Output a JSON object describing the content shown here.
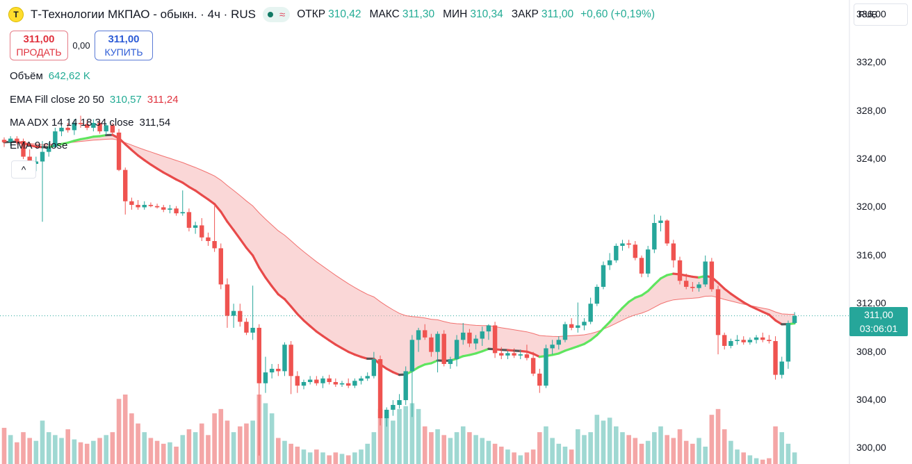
{
  "header": {
    "logo_letter": "T",
    "instrument": "Т-Технологии МКПАО - обыкн. · 4ч · RUS",
    "status_wave": "≈",
    "open_label": "ОТКР",
    "open": "310,42",
    "high_label": "МАКС",
    "high": "311,30",
    "low_label": "МИН",
    "low": "310,34",
    "close_label": "ЗАКР",
    "close": "311,00",
    "change": "+0,60 (+0,19%)"
  },
  "trade": {
    "sell_price": "311,00",
    "sell_label": "ПРОДАТЬ",
    "spread": "0,00",
    "buy_price": "311,00",
    "buy_label": "КУПИТЬ"
  },
  "legend": {
    "volume_label": "Объём",
    "volume_value": "642,62 K",
    "ema_fill_label": "EMA Fill close 20 50",
    "ema_fill_v1": "310,57",
    "ema_fill_v2": "311,24",
    "ma_adx_label": "MA ADX 14 14 18 34 close",
    "ma_adx_value": "311,54",
    "ema9_label": "EMA 9 close",
    "collapse_icon": "^"
  },
  "currency": "RUB",
  "last_price": {
    "value": "311,00",
    "timer": "03:06:01"
  },
  "chart_data": {
    "type": "candlestick",
    "y_ticks": [
      "336,00",
      "332,00",
      "328,00",
      "324,00",
      "320,00",
      "316,00",
      "312,00",
      "308,00",
      "304,00",
      "300,00"
    ],
    "ylim": [
      298.7,
      337.2
    ],
    "colors": {
      "up": "#26a69a",
      "down": "#ef5350",
      "vol_up": "#9fd8d2",
      "vol_down": "#f4a6a6",
      "ema20": "#ef5350",
      "ema50_band": "#f5b7b7",
      "ma_adx_up": "#5fe55f",
      "ma_adx_down": "#e84a4a",
      "ma_adx_flat": "#555555"
    },
    "candles": [
      {
        "o": 325.6,
        "h": 325.8,
        "l": 325.0,
        "c": 325.4
      },
      {
        "o": 325.4,
        "h": 325.9,
        "l": 325.1,
        "c": 325.7
      },
      {
        "o": 325.7,
        "h": 325.9,
        "l": 325.2,
        "c": 325.5
      },
      {
        "o": 325.5,
        "h": 325.7,
        "l": 324.0,
        "c": 324.2
      },
      {
        "o": 324.2,
        "h": 324.8,
        "l": 323.0,
        "c": 323.6
      },
      {
        "o": 323.6,
        "h": 324.2,
        "l": 323.0,
        "c": 323.8
      },
      {
        "o": 323.8,
        "h": 325.5,
        "l": 318.8,
        "c": 324.6
      },
      {
        "o": 324.6,
        "h": 325.4,
        "l": 324.2,
        "c": 325.0
      },
      {
        "o": 325.0,
        "h": 326.6,
        "l": 324.9,
        "c": 326.3
      },
      {
        "o": 326.3,
        "h": 326.8,
        "l": 325.9,
        "c": 326.6
      },
      {
        "o": 326.6,
        "h": 327.0,
        "l": 326.2,
        "c": 326.4
      },
      {
        "o": 326.4,
        "h": 327.3,
        "l": 326.0,
        "c": 327.0
      },
      {
        "o": 327.0,
        "h": 327.6,
        "l": 326.6,
        "c": 326.9
      },
      {
        "o": 326.9,
        "h": 327.2,
        "l": 326.4,
        "c": 326.6
      },
      {
        "o": 326.6,
        "h": 327.3,
        "l": 326.3,
        "c": 327.0
      },
      {
        "o": 327.0,
        "h": 327.2,
        "l": 326.1,
        "c": 326.3
      },
      {
        "o": 326.3,
        "h": 327.0,
        "l": 326.0,
        "c": 326.8
      },
      {
        "o": 326.8,
        "h": 327.0,
        "l": 326.0,
        "c": 326.2
      },
      {
        "o": 326.2,
        "h": 326.5,
        "l": 323.0,
        "c": 323.1
      },
      {
        "o": 323.1,
        "h": 323.3,
        "l": 319.4,
        "c": 320.5
      },
      {
        "o": 320.5,
        "h": 320.8,
        "l": 319.8,
        "c": 320.2
      },
      {
        "o": 320.2,
        "h": 320.6,
        "l": 319.8,
        "c": 320.0
      },
      {
        "o": 320.0,
        "h": 320.5,
        "l": 319.8,
        "c": 320.2
      },
      {
        "o": 320.2,
        "h": 320.4,
        "l": 320.0,
        "c": 320.1
      },
      {
        "o": 320.1,
        "h": 320.3,
        "l": 319.9,
        "c": 320.0
      },
      {
        "o": 320.0,
        "h": 320.2,
        "l": 319.6,
        "c": 319.8
      },
      {
        "o": 319.8,
        "h": 320.2,
        "l": 319.5,
        "c": 319.9
      },
      {
        "o": 319.9,
        "h": 320.1,
        "l": 319.3,
        "c": 319.5
      },
      {
        "o": 319.5,
        "h": 321.4,
        "l": 319.3,
        "c": 319.6
      },
      {
        "o": 319.6,
        "h": 319.9,
        "l": 318.0,
        "c": 318.3
      },
      {
        "o": 318.3,
        "h": 318.8,
        "l": 317.8,
        "c": 318.5
      },
      {
        "o": 318.5,
        "h": 319.1,
        "l": 317.2,
        "c": 317.5
      },
      {
        "o": 317.5,
        "h": 317.9,
        "l": 316.8,
        "c": 317.2
      },
      {
        "o": 317.2,
        "h": 320.1,
        "l": 316.3,
        "c": 316.6
      },
      {
        "o": 316.6,
        "h": 317.0,
        "l": 313.2,
        "c": 313.6
      },
      {
        "o": 313.6,
        "h": 314.1,
        "l": 310.0,
        "c": 311.0
      },
      {
        "o": 311.0,
        "h": 312.0,
        "l": 310.0,
        "c": 311.4
      },
      {
        "o": 311.4,
        "h": 312.0,
        "l": 310.1,
        "c": 310.5
      },
      {
        "o": 310.5,
        "h": 310.8,
        "l": 309.4,
        "c": 309.6
      },
      {
        "o": 309.6,
        "h": 313.5,
        "l": 309.0,
        "c": 310.0
      },
      {
        "o": 310.0,
        "h": 310.3,
        "l": 299.4,
        "c": 305.4
      },
      {
        "o": 305.4,
        "h": 307.6,
        "l": 304.6,
        "c": 306.3
      },
      {
        "o": 306.3,
        "h": 307.0,
        "l": 305.8,
        "c": 306.6
      },
      {
        "o": 306.6,
        "h": 307.0,
        "l": 306.0,
        "c": 306.4
      },
      {
        "o": 306.4,
        "h": 308.8,
        "l": 306.0,
        "c": 308.6
      },
      {
        "o": 308.6,
        "h": 308.9,
        "l": 304.5,
        "c": 306.0
      },
      {
        "o": 306.0,
        "h": 306.4,
        "l": 304.6,
        "c": 305.2
      },
      {
        "o": 305.2,
        "h": 305.7,
        "l": 304.9,
        "c": 305.5
      },
      {
        "o": 305.5,
        "h": 306.0,
        "l": 305.3,
        "c": 305.7
      },
      {
        "o": 305.7,
        "h": 306.0,
        "l": 305.2,
        "c": 305.4
      },
      {
        "o": 305.4,
        "h": 306.0,
        "l": 305.0,
        "c": 305.8
      },
      {
        "o": 305.8,
        "h": 306.1,
        "l": 305.3,
        "c": 305.5
      },
      {
        "o": 305.5,
        "h": 305.8,
        "l": 305.1,
        "c": 305.3
      },
      {
        "o": 305.3,
        "h": 305.6,
        "l": 305.1,
        "c": 305.4
      },
      {
        "o": 305.4,
        "h": 305.8,
        "l": 305.0,
        "c": 305.2
      },
      {
        "o": 305.2,
        "h": 305.8,
        "l": 305.0,
        "c": 305.6
      },
      {
        "o": 305.6,
        "h": 306.0,
        "l": 305.3,
        "c": 305.8
      },
      {
        "o": 305.8,
        "h": 306.3,
        "l": 305.6,
        "c": 306.0
      },
      {
        "o": 306.0,
        "h": 308.0,
        "l": 305.8,
        "c": 307.4
      },
      {
        "o": 307.4,
        "h": 307.7,
        "l": 301.9,
        "c": 302.5
      },
      {
        "o": 302.5,
        "h": 303.4,
        "l": 301.8,
        "c": 303.2
      },
      {
        "o": 303.2,
        "h": 304.0,
        "l": 302.7,
        "c": 303.6
      },
      {
        "o": 303.6,
        "h": 304.5,
        "l": 303.3,
        "c": 304.0
      },
      {
        "o": 304.0,
        "h": 306.8,
        "l": 303.6,
        "c": 306.4
      },
      {
        "o": 306.4,
        "h": 309.4,
        "l": 302.6,
        "c": 309.0
      },
      {
        "o": 309.0,
        "h": 310.0,
        "l": 308.0,
        "c": 309.8
      },
      {
        "o": 309.8,
        "h": 310.3,
        "l": 309.0,
        "c": 309.2
      },
      {
        "o": 309.2,
        "h": 309.5,
        "l": 307.6,
        "c": 308.0
      },
      {
        "o": 308.0,
        "h": 309.7,
        "l": 306.3,
        "c": 309.5
      },
      {
        "o": 309.5,
        "h": 309.8,
        "l": 306.8,
        "c": 307.0
      },
      {
        "o": 307.0,
        "h": 307.6,
        "l": 306.6,
        "c": 307.4
      },
      {
        "o": 307.4,
        "h": 309.4,
        "l": 306.8,
        "c": 309.0
      },
      {
        "o": 309.0,
        "h": 310.4,
        "l": 308.6,
        "c": 309.6
      },
      {
        "o": 309.6,
        "h": 309.9,
        "l": 308.4,
        "c": 308.7
      },
      {
        "o": 308.7,
        "h": 309.4,
        "l": 308.2,
        "c": 309.1
      },
      {
        "o": 309.1,
        "h": 310.1,
        "l": 308.5,
        "c": 309.7
      },
      {
        "o": 309.7,
        "h": 310.3,
        "l": 309.0,
        "c": 310.2
      },
      {
        "o": 310.2,
        "h": 310.5,
        "l": 307.5,
        "c": 307.9
      },
      {
        "o": 307.9,
        "h": 308.4,
        "l": 307.4,
        "c": 307.7
      },
      {
        "o": 307.7,
        "h": 308.1,
        "l": 307.4,
        "c": 307.9
      },
      {
        "o": 307.9,
        "h": 308.3,
        "l": 307.5,
        "c": 307.7
      },
      {
        "o": 307.7,
        "h": 308.2,
        "l": 307.4,
        "c": 307.8
      },
      {
        "o": 307.8,
        "h": 308.6,
        "l": 307.3,
        "c": 307.5
      },
      {
        "o": 307.5,
        "h": 308.0,
        "l": 306.0,
        "c": 306.2
      },
      {
        "o": 306.2,
        "h": 306.6,
        "l": 304.6,
        "c": 305.2
      },
      {
        "o": 305.2,
        "h": 308.6,
        "l": 305.0,
        "c": 308.3
      },
      {
        "o": 308.3,
        "h": 309.0,
        "l": 307.8,
        "c": 308.6
      },
      {
        "o": 308.6,
        "h": 309.3,
        "l": 308.2,
        "c": 309.0
      },
      {
        "o": 309.0,
        "h": 310.5,
        "l": 308.8,
        "c": 310.3
      },
      {
        "o": 310.3,
        "h": 310.8,
        "l": 309.8,
        "c": 310.0
      },
      {
        "o": 310.0,
        "h": 312.1,
        "l": 309.6,
        "c": 310.2
      },
      {
        "o": 310.2,
        "h": 310.8,
        "l": 309.8,
        "c": 310.5
      },
      {
        "o": 310.5,
        "h": 312.5,
        "l": 310.3,
        "c": 312.0
      },
      {
        "o": 312.0,
        "h": 313.6,
        "l": 311.8,
        "c": 313.4
      },
      {
        "o": 313.4,
        "h": 315.5,
        "l": 313.2,
        "c": 315.2
      },
      {
        "o": 315.2,
        "h": 316.2,
        "l": 314.8,
        "c": 315.6
      },
      {
        "o": 315.6,
        "h": 317.0,
        "l": 315.4,
        "c": 316.8
      },
      {
        "o": 316.8,
        "h": 317.3,
        "l": 316.4,
        "c": 317.0
      },
      {
        "o": 317.0,
        "h": 317.3,
        "l": 316.6,
        "c": 316.9
      },
      {
        "o": 316.9,
        "h": 317.2,
        "l": 315.6,
        "c": 315.8
      },
      {
        "o": 315.8,
        "h": 316.0,
        "l": 314.2,
        "c": 314.5
      },
      {
        "o": 314.5,
        "h": 316.8,
        "l": 314.2,
        "c": 316.5
      },
      {
        "o": 316.5,
        "h": 319.4,
        "l": 316.2,
        "c": 318.7
      },
      {
        "o": 318.7,
        "h": 319.3,
        "l": 318.0,
        "c": 318.9
      },
      {
        "o": 318.9,
        "h": 319.0,
        "l": 316.8,
        "c": 317.0
      },
      {
        "o": 317.0,
        "h": 317.3,
        "l": 315.0,
        "c": 315.6
      },
      {
        "o": 315.6,
        "h": 315.9,
        "l": 313.6,
        "c": 313.9
      },
      {
        "o": 313.9,
        "h": 314.5,
        "l": 313.2,
        "c": 313.4
      },
      {
        "o": 313.4,
        "h": 313.8,
        "l": 313.0,
        "c": 313.3
      },
      {
        "o": 313.3,
        "h": 313.8,
        "l": 313.0,
        "c": 313.6
      },
      {
        "o": 313.6,
        "h": 316.0,
        "l": 313.4,
        "c": 315.5
      },
      {
        "o": 315.5,
        "h": 315.8,
        "l": 313.0,
        "c": 313.2
      },
      {
        "o": 313.2,
        "h": 313.5,
        "l": 307.8,
        "c": 309.4
      },
      {
        "o": 309.4,
        "h": 309.6,
        "l": 308.2,
        "c": 308.5
      },
      {
        "o": 308.5,
        "h": 309.1,
        "l": 308.3,
        "c": 308.9
      },
      {
        "o": 308.9,
        "h": 309.4,
        "l": 308.6,
        "c": 309.0
      },
      {
        "o": 309.0,
        "h": 309.3,
        "l": 308.6,
        "c": 308.8
      },
      {
        "o": 308.8,
        "h": 309.2,
        "l": 308.6,
        "c": 309.0
      },
      {
        "o": 309.0,
        "h": 309.4,
        "l": 308.7,
        "c": 309.2
      },
      {
        "o": 309.2,
        "h": 309.6,
        "l": 308.8,
        "c": 309.0
      },
      {
        "o": 309.0,
        "h": 309.4,
        "l": 308.7,
        "c": 308.9
      },
      {
        "o": 308.9,
        "h": 309.3,
        "l": 305.7,
        "c": 306.1
      },
      {
        "o": 306.1,
        "h": 307.6,
        "l": 305.8,
        "c": 307.2
      },
      {
        "o": 307.2,
        "h": 310.6,
        "l": 306.6,
        "c": 310.4
      },
      {
        "o": 310.4,
        "h": 311.3,
        "l": 310.3,
        "c": 311.0
      }
    ],
    "volume": [
      25,
      20,
      15,
      22,
      18,
      16,
      30,
      22,
      20,
      18,
      24,
      17,
      15,
      14,
      16,
      18,
      20,
      22,
      45,
      48,
      35,
      28,
      22,
      18,
      16,
      14,
      15,
      12,
      20,
      24,
      22,
      28,
      20,
      35,
      38,
      30,
      22,
      26,
      28,
      30,
      48,
      42,
      35,
      18,
      16,
      14,
      12,
      10,
      8,
      10,
      8,
      6,
      8,
      7,
      6,
      8,
      10,
      14,
      22,
      38,
      34,
      30,
      38,
      40,
      42,
      38,
      26,
      22,
      24,
      20,
      18,
      22,
      26,
      22,
      20,
      18,
      16,
      14,
      12,
      10,
      8,
      6,
      8,
      10,
      22,
      26,
      18,
      14,
      12,
      10,
      24,
      20,
      22,
      34,
      30,
      32,
      26,
      22,
      20,
      18,
      14,
      16,
      22,
      26,
      20,
      18,
      24,
      16,
      14,
      18,
      12,
      34,
      38,
      24,
      16,
      10,
      8,
      6,
      4,
      3,
      4,
      26,
      22,
      14,
      8
    ]
  }
}
